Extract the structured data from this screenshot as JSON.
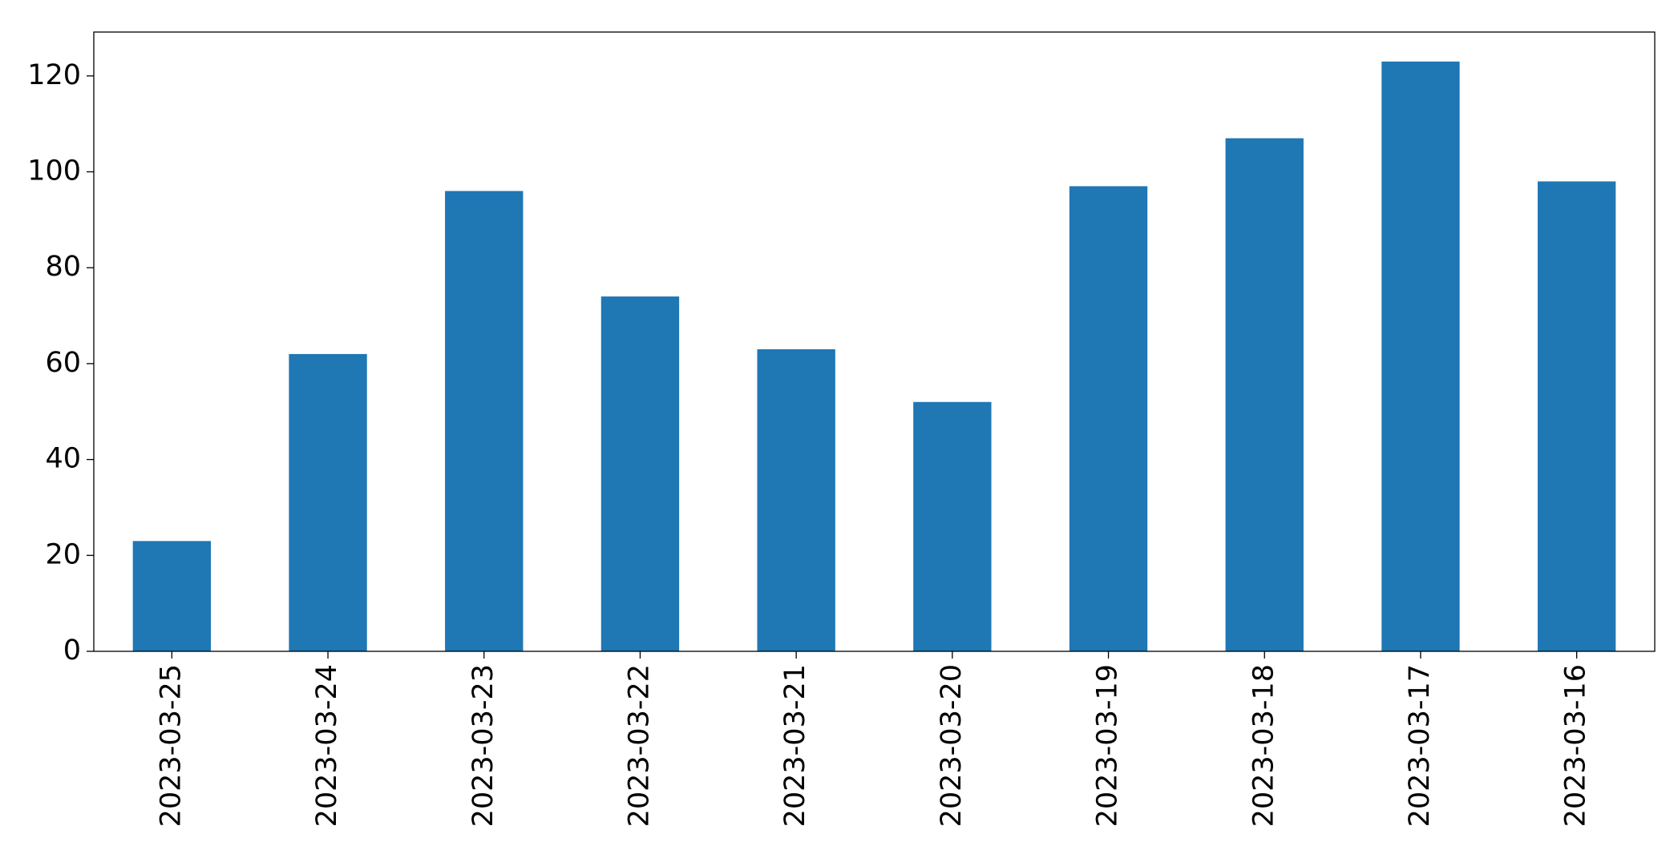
{
  "chart_data": {
    "type": "bar",
    "categories": [
      "2023-03-25",
      "2023-03-24",
      "2023-03-23",
      "2023-03-22",
      "2023-03-21",
      "2023-03-20",
      "2023-03-19",
      "2023-03-18",
      "2023-03-17",
      "2023-03-16"
    ],
    "values": [
      23,
      62,
      96,
      74,
      63,
      52,
      97,
      107,
      123,
      98
    ],
    "color": "#1f77b4",
    "ylim": [
      0,
      129.15
    ],
    "yticks": [
      0,
      20,
      40,
      60,
      80,
      100,
      120
    ],
    "grid": false
  }
}
